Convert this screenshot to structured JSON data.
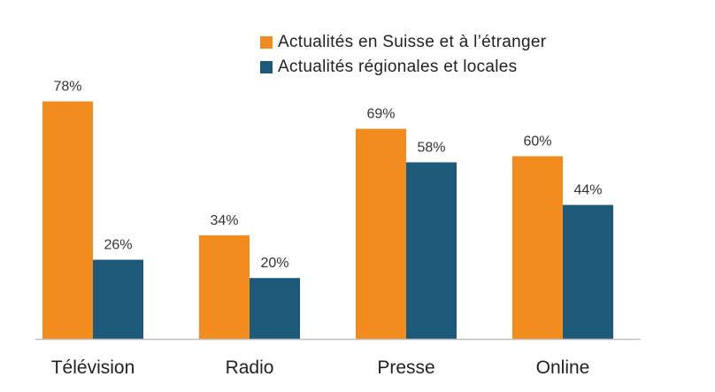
{
  "chart_data": {
    "type": "bar",
    "categories": [
      "Télévision",
      "Radio",
      "Presse",
      "Online"
    ],
    "series": [
      {
        "name": "Actualités en Suisse et à l’étranger",
        "values": [
          78,
          34,
          69,
          60
        ],
        "color": "#F28C1E"
      },
      {
        "name": "Actualités régionales et locales",
        "values": [
          26,
          20,
          58,
          44
        ],
        "color": "#1D5A7A"
      }
    ],
    "value_suffix": "%",
    "ylim": [
      0,
      100
    ],
    "legend_position": "top-right",
    "grid": false
  }
}
